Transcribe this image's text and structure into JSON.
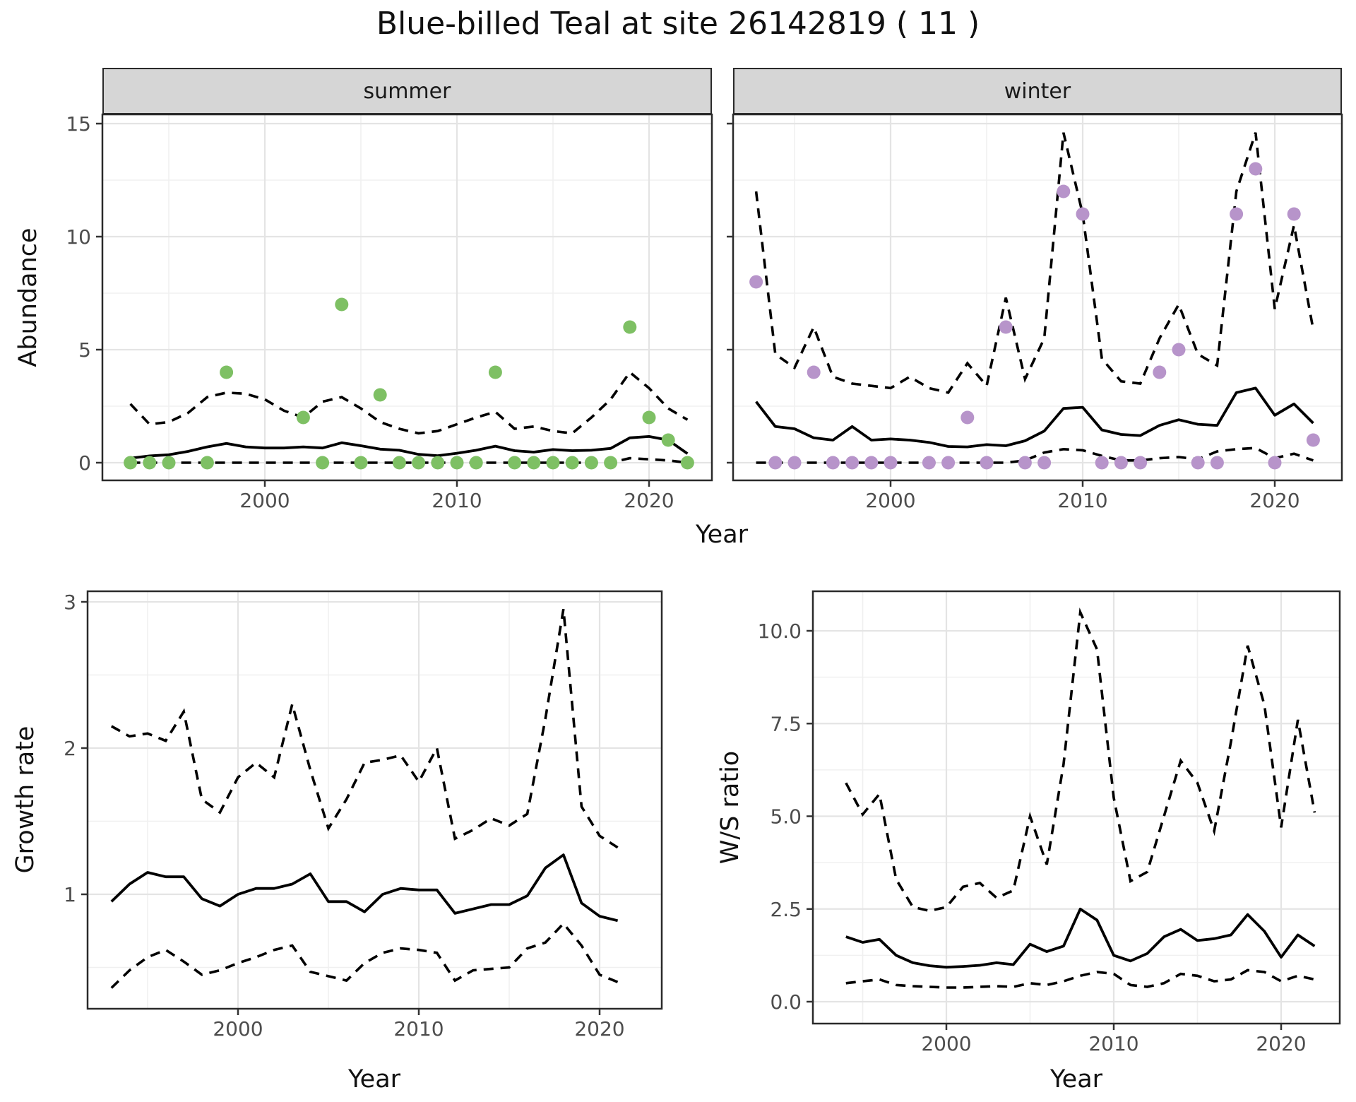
{
  "title": "Blue-billed Teal at site 26142819 ( 11 )",
  "facets": [
    "summer",
    "winter"
  ],
  "labels": {
    "abundance": "Abundance",
    "growth_rate": "Growth rate",
    "ws_ratio": "W/S ratio",
    "year": "Year"
  },
  "colors": {
    "summer_point": "#7EC064",
    "winter_point": "#B794CA",
    "mean_line": "#000000",
    "ci_line": "#000000",
    "grid_major": "#e4e4e4",
    "grid_minor": "#f0f0f0",
    "panel_border": "#2a2a2a",
    "tick_label": "#4d4d4d",
    "strip_bg": "#d6d6d6"
  },
  "chart_data": [
    {
      "id": "abundance-summer",
      "type": "line",
      "facet": "summer",
      "ylabel": "Abundance",
      "xlabel": "Year",
      "x_major": [
        2000,
        2010,
        2020
      ],
      "x_major_labels": [
        "2000",
        "2010",
        "2020"
      ],
      "x_minor": [
        1995,
        2005,
        2015
      ],
      "y_major": [
        0,
        5,
        10,
        15
      ],
      "y_major_labels": [
        "0",
        "5",
        "10",
        "15"
      ],
      "y_minor": [
        2.5,
        7.5,
        12.5
      ],
      "show_y_labels": true,
      "xlim": [
        1991.5,
        2023.3
      ],
      "ylim": [
        -0.8,
        15.4
      ],
      "years": [
        1993,
        1994,
        1995,
        1996,
        1997,
        1998,
        1999,
        2000,
        2001,
        2002,
        2003,
        2004,
        2005,
        2006,
        2007,
        2008,
        2009,
        2010,
        2011,
        2012,
        2013,
        2014,
        2015,
        2016,
        2017,
        2018,
        2019,
        2020,
        2021,
        2022
      ],
      "mean": [
        0.2,
        0.3,
        0.35,
        0.5,
        0.7,
        0.85,
        0.7,
        0.65,
        0.65,
        0.7,
        0.65,
        0.88,
        0.75,
        0.6,
        0.55,
        0.37,
        0.31,
        0.42,
        0.55,
        0.73,
        0.53,
        0.47,
        0.58,
        0.53,
        0.55,
        0.63,
        1.1,
        1.16,
        1.0,
        0.4
      ],
      "upper": [
        2.6,
        1.7,
        1.8,
        2.2,
        2.9,
        3.1,
        3.05,
        2.8,
        2.3,
        2.0,
        2.7,
        2.9,
        2.4,
        1.8,
        1.5,
        1.3,
        1.4,
        1.7,
        2.0,
        2.25,
        1.5,
        1.6,
        1.4,
        1.3,
        2.0,
        2.8,
        4.0,
        3.3,
        2.4,
        1.9
      ],
      "lower": [
        0,
        0,
        0,
        0,
        0,
        0,
        0,
        0,
        0,
        0,
        0,
        0,
        0,
        0,
        0,
        0,
        0,
        0,
        0,
        0,
        0,
        0,
        0,
        0,
        0,
        0,
        0.2,
        0.15,
        0.1,
        0
      ],
      "points": {
        "years": [
          1993,
          1994,
          1995,
          1997,
          1998,
          2002,
          2003,
          2004,
          2005,
          2006,
          2007,
          2008,
          2009,
          2010,
          2011,
          2012,
          2013,
          2014,
          2015,
          2016,
          2017,
          2018,
          2019,
          2020,
          2021,
          2022
        ],
        "values": [
          0,
          0,
          0,
          0,
          4,
          2,
          0,
          7,
          0,
          3,
          0,
          0,
          0,
          0,
          0,
          4,
          0,
          0,
          0,
          0,
          0,
          0,
          6,
          2,
          1,
          0
        ]
      }
    },
    {
      "id": "abundance-winter",
      "type": "line",
      "facet": "winter",
      "ylabel": "Abundance",
      "xlabel": "Year",
      "x_major": [
        2000,
        2010,
        2020
      ],
      "x_major_labels": [
        "2000",
        "2010",
        "2020"
      ],
      "x_minor": [
        1995,
        2005,
        2015
      ],
      "y_major": [
        0,
        5,
        10,
        15
      ],
      "y_major_labels": [
        "0",
        "5",
        "10",
        "15"
      ],
      "y_minor": [
        2.5,
        7.5,
        12.5
      ],
      "show_y_labels": false,
      "xlim": [
        1991.5,
        2023.3
      ],
      "ylim": [
        -0.8,
        15.4
      ],
      "years": [
        1993,
        1994,
        1995,
        1996,
        1997,
        1998,
        1999,
        2000,
        2001,
        2002,
        2003,
        2004,
        2005,
        2006,
        2007,
        2008,
        2009,
        2010,
        2011,
        2012,
        2013,
        2014,
        2015,
        2016,
        2017,
        2018,
        2019,
        2020,
        2021,
        2022
      ],
      "mean": [
        2.7,
        1.6,
        1.5,
        1.1,
        1.0,
        1.6,
        1.0,
        1.05,
        1.0,
        0.9,
        0.72,
        0.7,
        0.8,
        0.75,
        0.97,
        1.4,
        2.4,
        2.45,
        1.45,
        1.25,
        1.2,
        1.65,
        1.9,
        1.7,
        1.65,
        3.1,
        3.3,
        2.1,
        2.6,
        1.75
      ],
      "upper": [
        12.0,
        4.8,
        4.2,
        6.0,
        3.8,
        3.5,
        3.4,
        3.3,
        3.8,
        3.3,
        3.1,
        4.4,
        3.4,
        7.3,
        3.7,
        5.5,
        14.6,
        11.0,
        4.6,
        3.6,
        3.5,
        5.5,
        7.0,
        4.8,
        4.3,
        12.0,
        14.6,
        6.8,
        10.5,
        5.9
      ],
      "lower": [
        0,
        0,
        0,
        0,
        0,
        0,
        0,
        0,
        0,
        0,
        0,
        0,
        0,
        0,
        0.1,
        0.45,
        0.6,
        0.55,
        0.3,
        0.1,
        0.1,
        0.2,
        0.25,
        0.15,
        0.5,
        0.6,
        0.65,
        0.2,
        0.4,
        0.1
      ],
      "points": {
        "years": [
          1993,
          1994,
          1995,
          1996,
          1997,
          1998,
          1999,
          2000,
          2002,
          2003,
          2004,
          2005,
          2006,
          2007,
          2008,
          2009,
          2010,
          2011,
          2012,
          2013,
          2014,
          2015,
          2016,
          2017,
          2018,
          2019,
          2020,
          2021,
          2022
        ],
        "values": [
          8,
          0,
          0,
          4,
          0,
          0,
          0,
          0,
          0,
          0,
          2,
          0,
          6,
          0,
          0,
          12,
          11,
          0,
          0,
          0,
          4,
          5,
          0,
          0,
          11,
          13,
          0,
          11,
          1
        ]
      }
    },
    {
      "id": "growth-rate",
      "type": "line",
      "ylabel": "Growth rate",
      "xlabel": "Year",
      "x_major": [
        2000,
        2010,
        2020
      ],
      "x_major_labels": [
        "2000",
        "2010",
        "2020"
      ],
      "x_minor": [
        1995,
        2005,
        2015
      ],
      "y_major": [
        1,
        2,
        3
      ],
      "y_major_labels": [
        "1",
        "2",
        "3"
      ],
      "y_minor": [
        0.5,
        1.5,
        2.5
      ],
      "show_y_labels": true,
      "xlim": [
        1991.7,
        2023.4
      ],
      "ylim": [
        0.22,
        3.07
      ],
      "years": [
        1993,
        1994,
        1995,
        1996,
        1997,
        1998,
        1999,
        2000,
        2001,
        2002,
        2003,
        2004,
        2005,
        2006,
        2007,
        2008,
        2009,
        2010,
        2011,
        2012,
        2013,
        2014,
        2015,
        2016,
        2017,
        2018,
        2019,
        2020,
        2021
      ],
      "mean": [
        0.95,
        1.07,
        1.15,
        1.12,
        1.12,
        0.97,
        0.92,
        1.0,
        1.04,
        1.04,
        1.07,
        1.14,
        0.95,
        0.95,
        0.88,
        1.0,
        1.04,
        1.03,
        1.03,
        0.87,
        0.9,
        0.93,
        0.93,
        0.99,
        1.18,
        1.27,
        0.94,
        0.85,
        0.82
      ],
      "upper": [
        2.15,
        2.08,
        2.1,
        2.05,
        2.25,
        1.65,
        1.56,
        1.8,
        1.9,
        1.8,
        2.3,
        1.85,
        1.45,
        1.65,
        1.9,
        1.92,
        1.95,
        1.77,
        2.0,
        1.38,
        1.44,
        1.52,
        1.47,
        1.55,
        2.2,
        2.95,
        1.6,
        1.4,
        1.32
      ],
      "lower": [
        0.36,
        0.48,
        0.57,
        0.62,
        0.54,
        0.45,
        0.48,
        0.53,
        0.57,
        0.62,
        0.65,
        0.47,
        0.44,
        0.41,
        0.53,
        0.6,
        0.63,
        0.62,
        0.6,
        0.41,
        0.48,
        0.49,
        0.5,
        0.63,
        0.67,
        0.8,
        0.65,
        0.45,
        0.4
      ]
    },
    {
      "id": "ws-ratio",
      "type": "line",
      "ylabel": "W/S ratio",
      "xlabel": "Year",
      "x_major": [
        2000,
        2010,
        2020
      ],
      "x_major_labels": [
        "2000",
        "2010",
        "2020"
      ],
      "x_minor": [
        1995,
        2005,
        2015
      ],
      "y_major": [
        0,
        2.5,
        5,
        7.5,
        10
      ],
      "y_major_labels": [
        "0.0",
        "2.5",
        "5.0",
        "7.5",
        "10.0"
      ],
      "y_minor": [
        1.25,
        3.75,
        6.25,
        8.75,
        11.25
      ],
      "show_y_labels": true,
      "xlim": [
        1992.0,
        2023.5
      ],
      "ylim": [
        -0.6,
        11.07
      ],
      "years": [
        1994,
        1995,
        1996,
        1997,
        1998,
        1999,
        2000,
        2001,
        2002,
        2003,
        2004,
        2005,
        2006,
        2007,
        2008,
        2009,
        2010,
        2011,
        2012,
        2013,
        2014,
        2015,
        2016,
        2017,
        2018,
        2019,
        2020,
        2021,
        2022
      ],
      "mean": [
        1.75,
        1.6,
        1.68,
        1.25,
        1.05,
        0.97,
        0.93,
        0.95,
        0.98,
        1.05,
        1.0,
        1.55,
        1.35,
        1.5,
        2.5,
        2.2,
        1.25,
        1.1,
        1.3,
        1.75,
        1.95,
        1.65,
        1.7,
        1.8,
        2.35,
        1.9,
        1.2,
        1.8,
        1.5
      ],
      "upper": [
        5.9,
        5.05,
        5.6,
        3.3,
        2.55,
        2.45,
        2.55,
        3.1,
        3.2,
        2.8,
        3.0,
        5.0,
        3.7,
        6.4,
        10.5,
        9.5,
        5.5,
        3.25,
        3.5,
        5.0,
        6.5,
        5.9,
        4.6,
        7.0,
        9.6,
        8.0,
        4.7,
        7.6,
        5.1
      ],
      "lower": [
        0.5,
        0.55,
        0.6,
        0.45,
        0.42,
        0.4,
        0.38,
        0.38,
        0.4,
        0.42,
        0.4,
        0.5,
        0.45,
        0.55,
        0.7,
        0.8,
        0.75,
        0.45,
        0.4,
        0.5,
        0.75,
        0.7,
        0.55,
        0.6,
        0.85,
        0.8,
        0.55,
        0.7,
        0.6
      ]
    }
  ]
}
